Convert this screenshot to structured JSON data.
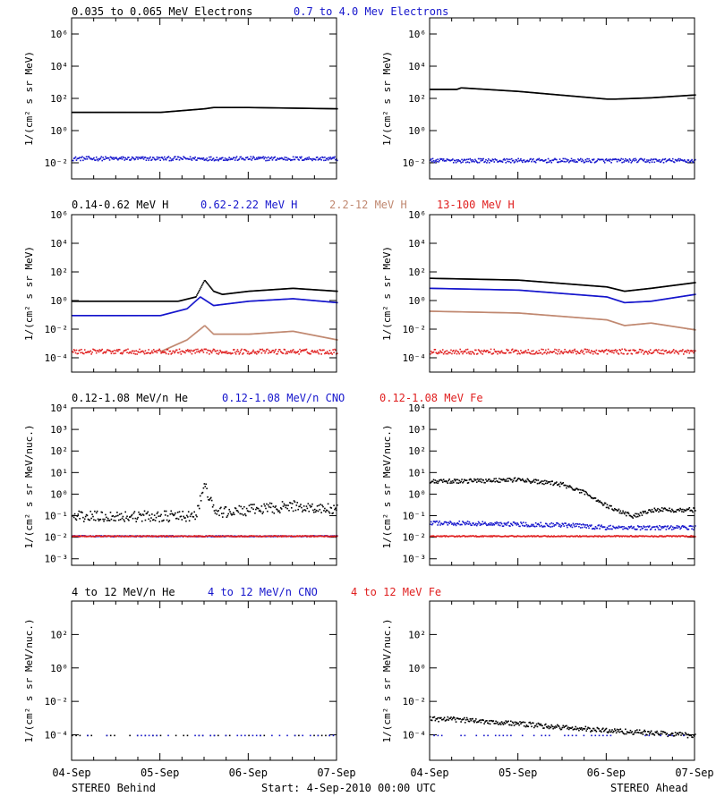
{
  "chart_data": [
    {
      "type": "scatter",
      "panel": "electrons",
      "legend": [
        {
          "label": "0.035 to 0.065 MeV Electrons",
          "color": "#000000"
        },
        {
          "label": "0.7 to 4.0 Mev Electrons",
          "color": "#1515cc"
        }
      ],
      "ylabel": "1/(cm² s sr MeV)",
      "yscale": "log",
      "ylim": [
        0.001,
        10000000
      ],
      "yticks": [
        {
          "exp": -2,
          "label": "10⁻²"
        },
        {
          "exp": 0,
          "label": "10⁰"
        },
        {
          "exp": 2,
          "label": "10²"
        },
        {
          "exp": 4,
          "label": "10⁴"
        },
        {
          "exp": 6,
          "label": "10⁶"
        }
      ],
      "behind_series": [
        {
          "color": "#000000",
          "days": [
            0,
            1,
            1.5,
            1.6,
            2,
            3
          ],
          "values": [
            15,
            15,
            25,
            30,
            30,
            25
          ]
        },
        {
          "color": "#1515cc",
          "days": [
            0,
            3
          ],
          "values": [
            0.02,
            0.02
          ],
          "scatter": 0.25
        }
      ],
      "ahead_series": [
        {
          "color": "#000000",
          "days": [
            0,
            0.3,
            0.35,
            1,
            2,
            2.1,
            2.5,
            3
          ],
          "values": [
            400,
            400,
            500,
            300,
            100,
            100,
            120,
            180
          ]
        },
        {
          "color": "#1515cc",
          "days": [
            0,
            3
          ],
          "values": [
            0.015,
            0.015
          ],
          "scatter": 0.25
        }
      ]
    },
    {
      "type": "scatter",
      "panel": "protons",
      "legend": [
        {
          "label": "0.14-0.62 MeV H",
          "color": "#000000"
        },
        {
          "label": "0.62-2.22 MeV H",
          "color": "#1515cc"
        },
        {
          "label": "2.2-12 MeV H",
          "color": "#c08870"
        },
        {
          "label": "13-100 MeV H",
          "color": "#e02020"
        }
      ],
      "ylabel": "1/(cm² s sr MeV)",
      "yscale": "log",
      "ylim": [
        1e-05,
        1000000
      ],
      "yticks": [
        {
          "exp": -4,
          "label": "10⁻⁴"
        },
        {
          "exp": -2,
          "label": "10⁻²"
        },
        {
          "exp": 0,
          "label": "10⁰"
        },
        {
          "exp": 2,
          "label": "10²"
        },
        {
          "exp": 4,
          "label": "10⁴"
        },
        {
          "exp": 6,
          "label": "10⁶"
        }
      ],
      "behind_series": [
        {
          "color": "#000000",
          "days": [
            0,
            1.2,
            1.4,
            1.5,
            1.6,
            1.7,
            2,
            2.5,
            3
          ],
          "values": [
            1,
            1,
            2,
            30,
            5,
            3,
            5,
            8,
            5
          ]
        },
        {
          "color": "#1515cc",
          "days": [
            0,
            1,
            1.3,
            1.45,
            1.6,
            2,
            2.5,
            3
          ],
          "values": [
            0.1,
            0.1,
            0.3,
            2,
            0.5,
            1,
            1.5,
            0.8
          ]
        },
        {
          "color": "#c08870",
          "days": [
            1,
            1.3,
            1.5,
            1.6,
            2,
            2.5,
            3
          ],
          "values": [
            0.0003,
            0.002,
            0.02,
            0.005,
            0.005,
            0.008,
            0.002
          ]
        },
        {
          "color": "#e02020",
          "days": [
            0,
            3
          ],
          "values": [
            0.0003,
            0.0003
          ],
          "scatter": 0.35
        }
      ],
      "ahead_series": [
        {
          "color": "#000000",
          "days": [
            0,
            1,
            2,
            2.2,
            2.5,
            3
          ],
          "values": [
            40,
            30,
            10,
            5,
            8,
            20
          ]
        },
        {
          "color": "#1515cc",
          "days": [
            0,
            1,
            2,
            2.2,
            2.5,
            3
          ],
          "values": [
            8,
            6,
            2,
            0.8,
            1,
            3
          ]
        },
        {
          "color": "#c08870",
          "days": [
            0,
            1,
            2,
            2.2,
            2.5,
            3
          ],
          "values": [
            0.2,
            0.15,
            0.05,
            0.02,
            0.03,
            0.01
          ]
        },
        {
          "color": "#e02020",
          "days": [
            0,
            3
          ],
          "values": [
            0.0003,
            0.0003
          ],
          "scatter": 0.35
        }
      ]
    },
    {
      "type": "scatter",
      "panel": "ions-low",
      "legend": [
        {
          "label": "0.12-1.08 MeV/n He",
          "color": "#000000"
        },
        {
          "label": "0.12-1.08 MeV/n CNO",
          "color": "#1515cc"
        },
        {
          "label": "0.12-1.08 MeV Fe",
          "color": "#e02020"
        }
      ],
      "ylabel": "1/(cm² s sr MeV/nuc.)",
      "yscale": "log",
      "ylim": [
        0.0005,
        10000
      ],
      "yticks": [
        {
          "exp": -3,
          "label": "10⁻³"
        },
        {
          "exp": -2,
          "label": "10⁻²"
        },
        {
          "exp": -1,
          "label": "10⁻¹"
        },
        {
          "exp": 0,
          "label": "10⁰"
        },
        {
          "exp": 1,
          "label": "10¹"
        },
        {
          "exp": 2,
          "label": "10²"
        },
        {
          "exp": 3,
          "label": "10³"
        },
        {
          "exp": 4,
          "label": "10⁴"
        }
      ],
      "behind_series": [
        {
          "color": "#000000",
          "days": [
            0,
            1.4,
            1.5,
            1.6,
            1.7,
            2.5,
            3
          ],
          "values": [
            0.1,
            0.1,
            3,
            0.2,
            0.15,
            0.3,
            0.2
          ],
          "scatter": 0.5
        },
        {
          "color": "#1515cc",
          "days": [
            0,
            3
          ],
          "values": [
            0.012,
            0.012
          ],
          "scatter": 0.05
        },
        {
          "color": "#e02020",
          "days": [
            0,
            3
          ],
          "values": [
            0.012,
            0.012
          ],
          "scatter": 0.05
        }
      ],
      "ahead_series": [
        {
          "color": "#000000",
          "days": [
            0,
            1,
            1.5,
            1.8,
            2,
            2.3,
            2.5,
            3
          ],
          "values": [
            4,
            5,
            3,
            1,
            0.3,
            0.1,
            0.2,
            0.2
          ],
          "scatter": 0.2
        },
        {
          "color": "#1515cc",
          "days": [
            0,
            1.5,
            2,
            3
          ],
          "values": [
            0.05,
            0.04,
            0.03,
            0.03
          ],
          "scatter": 0.2
        },
        {
          "color": "#e02020",
          "days": [
            0,
            3
          ],
          "values": [
            0.012,
            0.012
          ],
          "scatter": 0.05
        }
      ]
    },
    {
      "type": "scatter",
      "panel": "ions-high",
      "legend": [
        {
          "label": "4 to 12 MeV/n He",
          "color": "#000000"
        },
        {
          "label": "4 to 12 MeV/n CNO",
          "color": "#1515cc"
        },
        {
          "label": "4 to 12 MeV Fe",
          "color": "#e02020"
        }
      ],
      "ylabel": "1/(cm² s sr MeV/nuc.)",
      "yscale": "log",
      "ylim": [
        3e-06,
        10000
      ],
      "yticks": [
        {
          "exp": -4,
          "label": "10⁻⁴"
        },
        {
          "exp": -2,
          "label": "10⁻²"
        },
        {
          "exp": 0,
          "label": "10⁰"
        },
        {
          "exp": 2,
          "label": "10²"
        }
      ],
      "behind_series": [
        {
          "color": "#000000",
          "days": [
            0,
            3
          ],
          "values": [
            0.0001,
            0.0001
          ],
          "sparse": true
        },
        {
          "color": "#1515cc",
          "days": [
            0,
            3
          ],
          "values": [
            0.0001,
            0.0001
          ],
          "sparse": true
        }
      ],
      "ahead_series": [
        {
          "color": "#000000",
          "days": [
            0,
            0.5,
            1,
            1.5,
            2,
            3
          ],
          "values": [
            0.001,
            0.0008,
            0.0005,
            0.0003,
            0.0002,
            0.0001
          ],
          "scatter": 0.3
        },
        {
          "color": "#1515cc",
          "days": [
            0,
            3
          ],
          "values": [
            0.0001,
            0.0001
          ],
          "sparse": true
        }
      ]
    }
  ],
  "x_axis": {
    "days": [
      0,
      1,
      2,
      3
    ],
    "labels": [
      "04-Sep",
      "05-Sep",
      "06-Sep",
      "07-Sep"
    ]
  },
  "footer": {
    "left": "STEREO Behind",
    "center": "Start:  4-Sep-2010 00:00 UTC",
    "right": "STEREO Ahead"
  }
}
